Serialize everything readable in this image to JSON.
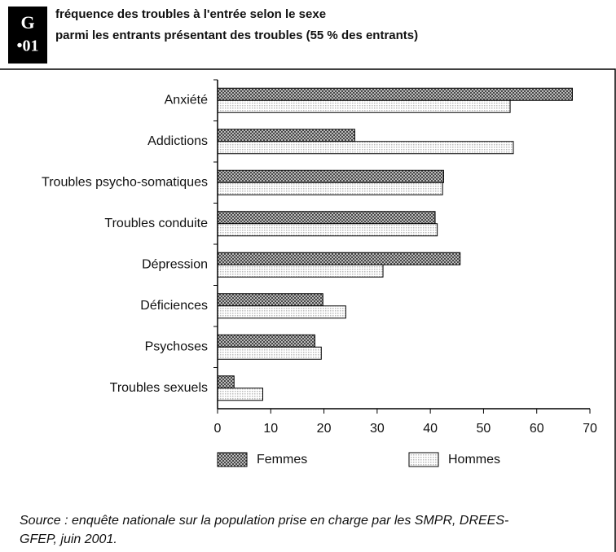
{
  "chart_data": {
    "type": "hbar",
    "badge": [
      "G",
      "•01"
    ],
    "title": "fréquence des troubles à l'entrée selon le sexe",
    "subtitle": "parmi les entrants présentant des troubles (55 % des entrants)",
    "categories": [
      "Anxiété",
      "Addictions",
      "Troubles psycho-somatiques",
      "Troubles conduite",
      "Dépression",
      "Déficiences",
      "Psychoses",
      "Troubles sexuels"
    ],
    "series": [
      {
        "name": "Femmes",
        "color": "#444444",
        "values": [
          66.7,
          25.8,
          42.5,
          40.9,
          45.6,
          19.8,
          18.3,
          3.1
        ]
      },
      {
        "name": "Hommes",
        "color": "#bbbbbb",
        "values": [
          55,
          55.6,
          42.3,
          41.3,
          31.1,
          24.1,
          19.5,
          8.5
        ]
      }
    ],
    "xlim": [
      0,
      70
    ],
    "xticks": [
      0,
      10,
      20,
      30,
      40,
      50,
      60,
      70
    ],
    "legend": "bottom",
    "source": [
      "Source : enquête nationale sur la population prise en charge par les SMPR, DREES-",
      "GFEP, juin 2001."
    ]
  }
}
